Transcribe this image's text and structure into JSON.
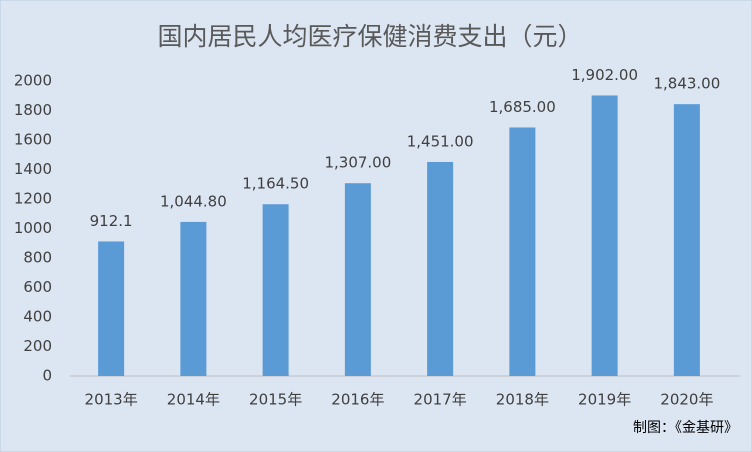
{
  "chart_data": {
    "type": "bar",
    "title": "国内居民人均医疗保健消费支出（元）",
    "categories": [
      "2013年",
      "2014年",
      "2015年",
      "2016年",
      "2017年",
      "2018年",
      "2019年",
      "2020年"
    ],
    "values": [
      912.1,
      1044.8,
      1164.5,
      1307,
      1451,
      1685,
      1902,
      1843
    ],
    "value_labels": [
      "912.1",
      "1,044.80",
      "1,164.50",
      "1,307.00",
      "1,451.00",
      "1,685.00",
      "1,902.00",
      "1,843.00"
    ],
    "color": "#5b9bd5",
    "ylim": [
      0,
      2000
    ],
    "yticks": [
      0,
      200,
      400,
      600,
      800,
      1000,
      1200,
      1400,
      1600,
      1800,
      2000
    ],
    "grid": false,
    "source": "制图：《金基研》"
  }
}
